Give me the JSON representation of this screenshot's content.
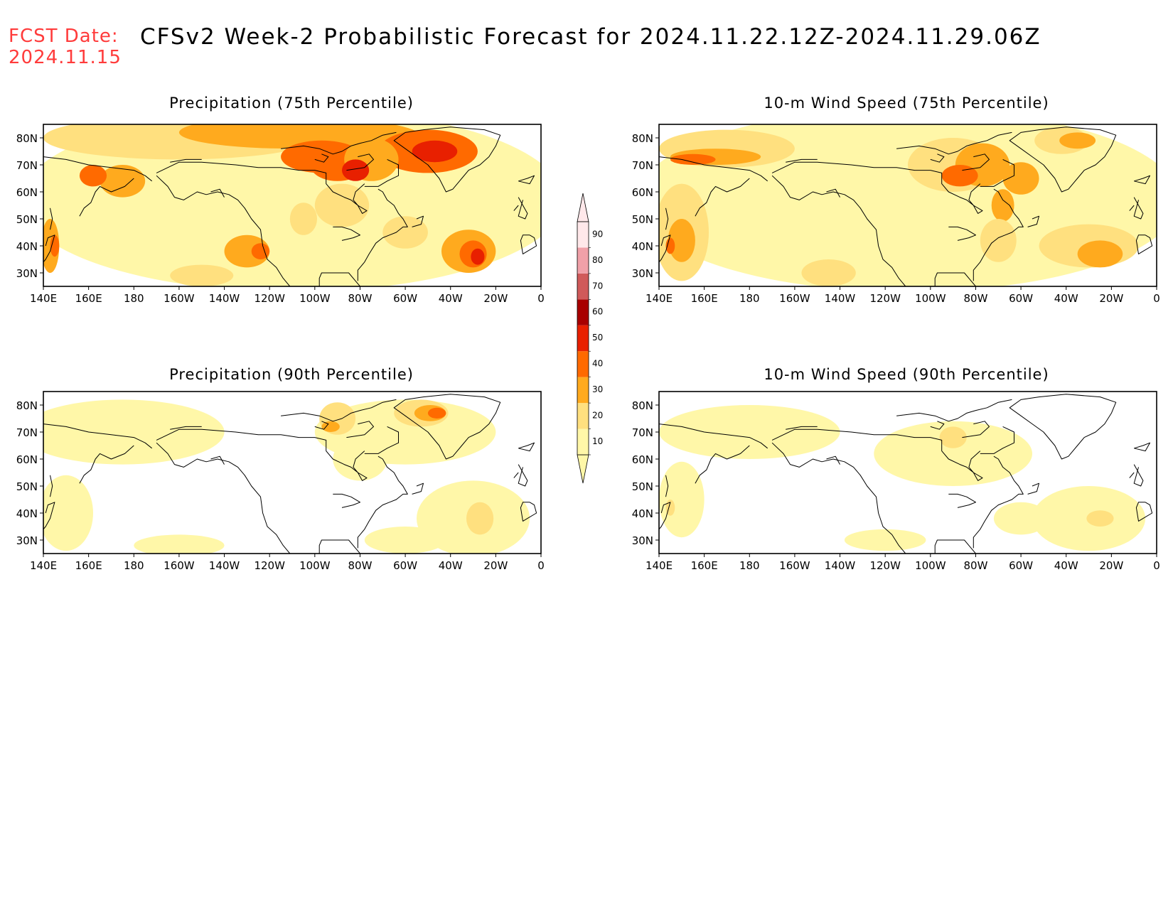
{
  "header": {
    "fcst_label": "FCST Date:",
    "fcst_date": "2024.11.15",
    "title": "CFSv2 Week-2 Probabilistic Forecast for 2024.11.22.12Z-2024.11.29.06Z"
  },
  "axes": {
    "lon_ticks": [
      "140E",
      "160E",
      "180",
      "160W",
      "140W",
      "120W",
      "100W",
      "80W",
      "60W",
      "40W",
      "20W",
      "0"
    ],
    "lat_ticks": [
      "80N",
      "70N",
      "60N",
      "50N",
      "40N",
      "30N"
    ],
    "lon_range_deg_east": [
      140,
      360
    ],
    "lat_range": [
      25,
      85
    ]
  },
  "panels": [
    {
      "id": "precip75",
      "title": "Precipitation (75th Percentile)",
      "intensity": "high"
    },
    {
      "id": "wind75",
      "title": "10-m Wind Speed (75th Percentile)",
      "intensity": "high"
    },
    {
      "id": "precip90",
      "title": "Precipitation (90th Percentile)",
      "intensity": "low"
    },
    {
      "id": "wind90",
      "title": "10-m Wind Speed (90th Percentile)",
      "intensity": "low"
    }
  ],
  "colorbar": {
    "labels": [
      "10",
      "20",
      "30",
      "40",
      "50",
      "60",
      "70",
      "80",
      "90"
    ],
    "colors": [
      "#fff7a8",
      "#ffe07f",
      "#ffaa1e",
      "#ff6a00",
      "#e82000",
      "#a80000",
      "#d05a5a",
      "#f0a0a8",
      "#ffe8ea"
    ]
  }
}
